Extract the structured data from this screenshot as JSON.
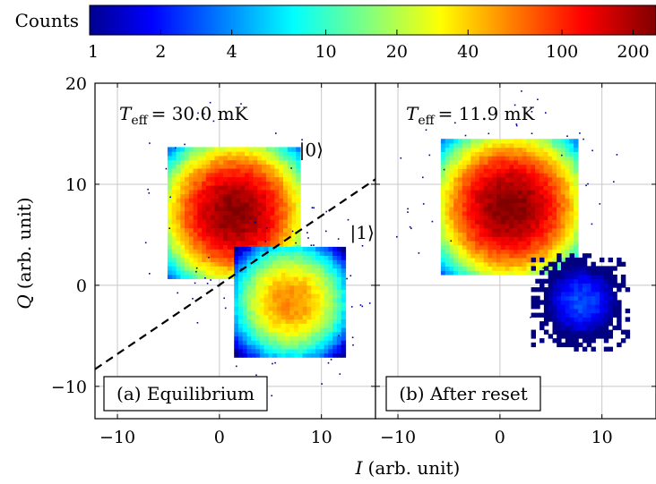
{
  "chart_data": {
    "type": "heatmap",
    "colorbar": {
      "label": "Counts",
      "scale": "log",
      "range": [
        1,
        250
      ],
      "tick_values": [
        1,
        2,
        4,
        10,
        20,
        40,
        100,
        200
      ],
      "tick_labels": [
        "1",
        "2",
        "4",
        "10",
        "20",
        "40",
        "100",
        "200"
      ],
      "colormap": "jet"
    },
    "xlabel_var": "I",
    "xlabel_unit": "(arb. unit)",
    "ylabel_var": "Q",
    "ylabel_unit": "(arb. unit)",
    "xlim": [
      -12.2,
      15.3
    ],
    "ylim": [
      -13.2,
      20
    ],
    "x_ticks": [
      -10,
      0,
      10
    ],
    "x_tick_labels": [
      "−10",
      "0",
      "10"
    ],
    "y_ticks": [
      -10,
      0,
      10,
      20
    ],
    "y_tick_labels": [
      "−10",
      "0",
      "10",
      "20"
    ],
    "grid": true,
    "panels": [
      {
        "label": "(a) Equilibrium",
        "t_eff_symbol": "T",
        "t_eff_subscript": "eff",
        "t_eff_value": "= 30.0 mK",
        "blobs": [
          {
            "state": "|0⟩",
            "center": [
              1.5,
              7.2
            ],
            "sigma": 3.1,
            "peak_counts": 240
          },
          {
            "state": "|1⟩",
            "center": [
              7.0,
              -1.6
            ],
            "sigma": 2.6,
            "peak_counts": 60
          }
        ],
        "state_labels": [
          {
            "text": "|0⟩",
            "x": 7.8,
            "y": 12.8
          },
          {
            "text": "|1⟩",
            "x": 12.8,
            "y": 4.6
          }
        ],
        "threshold_line": {
          "style": "dashed",
          "from": [
            -12.2,
            -8.3
          ],
          "to": [
            15.3,
            10.5
          ]
        }
      },
      {
        "label": "(b) After reset",
        "t_eff_symbol": "T",
        "t_eff_subscript": "eff",
        "t_eff_value": "= 11.9 mK",
        "blobs": [
          {
            "state": "|0⟩",
            "center": [
              1.0,
              7.8
            ],
            "sigma": 3.2,
            "peak_counts": 250
          },
          {
            "state": "|1⟩",
            "center": [
              8.0,
              -1.6
            ],
            "sigma": 2.3,
            "peak_counts": 3
          }
        ]
      }
    ]
  }
}
